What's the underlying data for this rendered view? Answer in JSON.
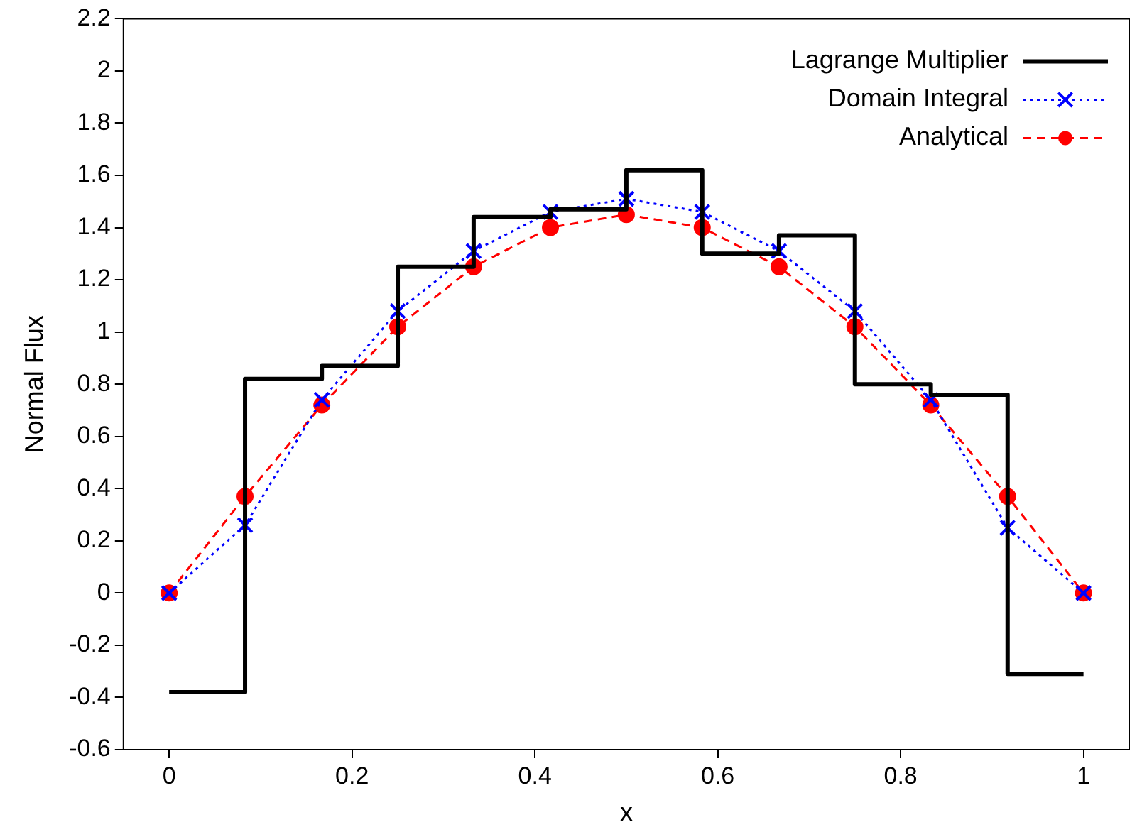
{
  "chart_data": {
    "type": "line",
    "xlabel": "x",
    "ylabel": "Normal Flux",
    "xlim": [
      -0.05,
      1.05
    ],
    "xticks": [
      0,
      0.2,
      0.4,
      0.6,
      0.8,
      1
    ],
    "ylim": [
      -0.6,
      2.2
    ],
    "yticks": [
      -0.6,
      -0.4,
      -0.2,
      0,
      0.2,
      0.4,
      0.6,
      0.8,
      1,
      1.2,
      1.4,
      1.6,
      1.8,
      2,
      2.2
    ],
    "grid": false,
    "legend": "top right",
    "x": [
      0,
      0.083,
      0.167,
      0.25,
      0.333,
      0.417,
      0.5,
      0.583,
      0.667,
      0.75,
      0.833,
      0.917,
      1
    ],
    "series": [
      {
        "name": "Lagrange Multiplier",
        "type": "step",
        "color": "#000000",
        "marker": "none",
        "line_style": "solid",
        "values": [
          -0.38,
          0.82,
          0.87,
          1.25,
          1.44,
          1.47,
          1.62,
          1.3,
          1.37,
          0.8,
          0.76,
          -0.31,
          -0.31
        ]
      },
      {
        "name": "Domain Integral",
        "type": "line",
        "color": "#0000ff",
        "marker": "cross",
        "line_style": "dotted",
        "values": [
          0,
          0.26,
          0.74,
          1.08,
          1.31,
          1.46,
          1.51,
          1.46,
          1.31,
          1.08,
          0.74,
          0.25,
          0
        ]
      },
      {
        "name": "Analytical",
        "type": "line",
        "color": "#ff0000",
        "marker": "circle",
        "line_style": "dashed",
        "values": [
          0,
          0.37,
          0.72,
          1.02,
          1.25,
          1.4,
          1.45,
          1.4,
          1.25,
          1.02,
          0.72,
          0.37,
          0
        ]
      }
    ]
  }
}
